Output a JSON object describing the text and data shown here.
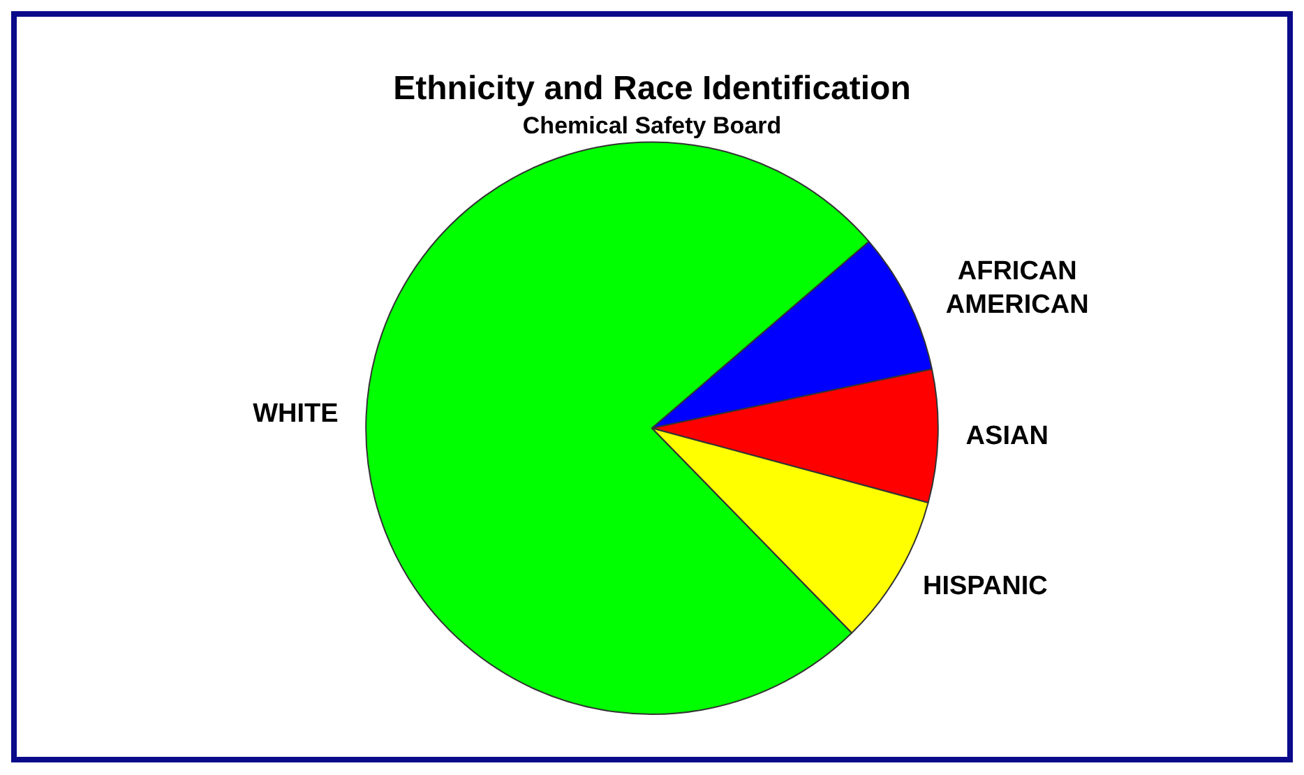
{
  "chart_data": {
    "type": "pie",
    "title": "Ethnicity and Race Identification",
    "subtitle": "Chemical Safety Board",
    "categories": [
      "WHITE",
      "AFRICAN AMERICAN",
      "ASIAN",
      "HISPANIC"
    ],
    "values": [
      76,
      8,
      7.5,
      8.5
    ],
    "colors": [
      "#00ff00",
      "#0000ff",
      "#ff0000",
      "#ffff00"
    ],
    "legend": false
  }
}
